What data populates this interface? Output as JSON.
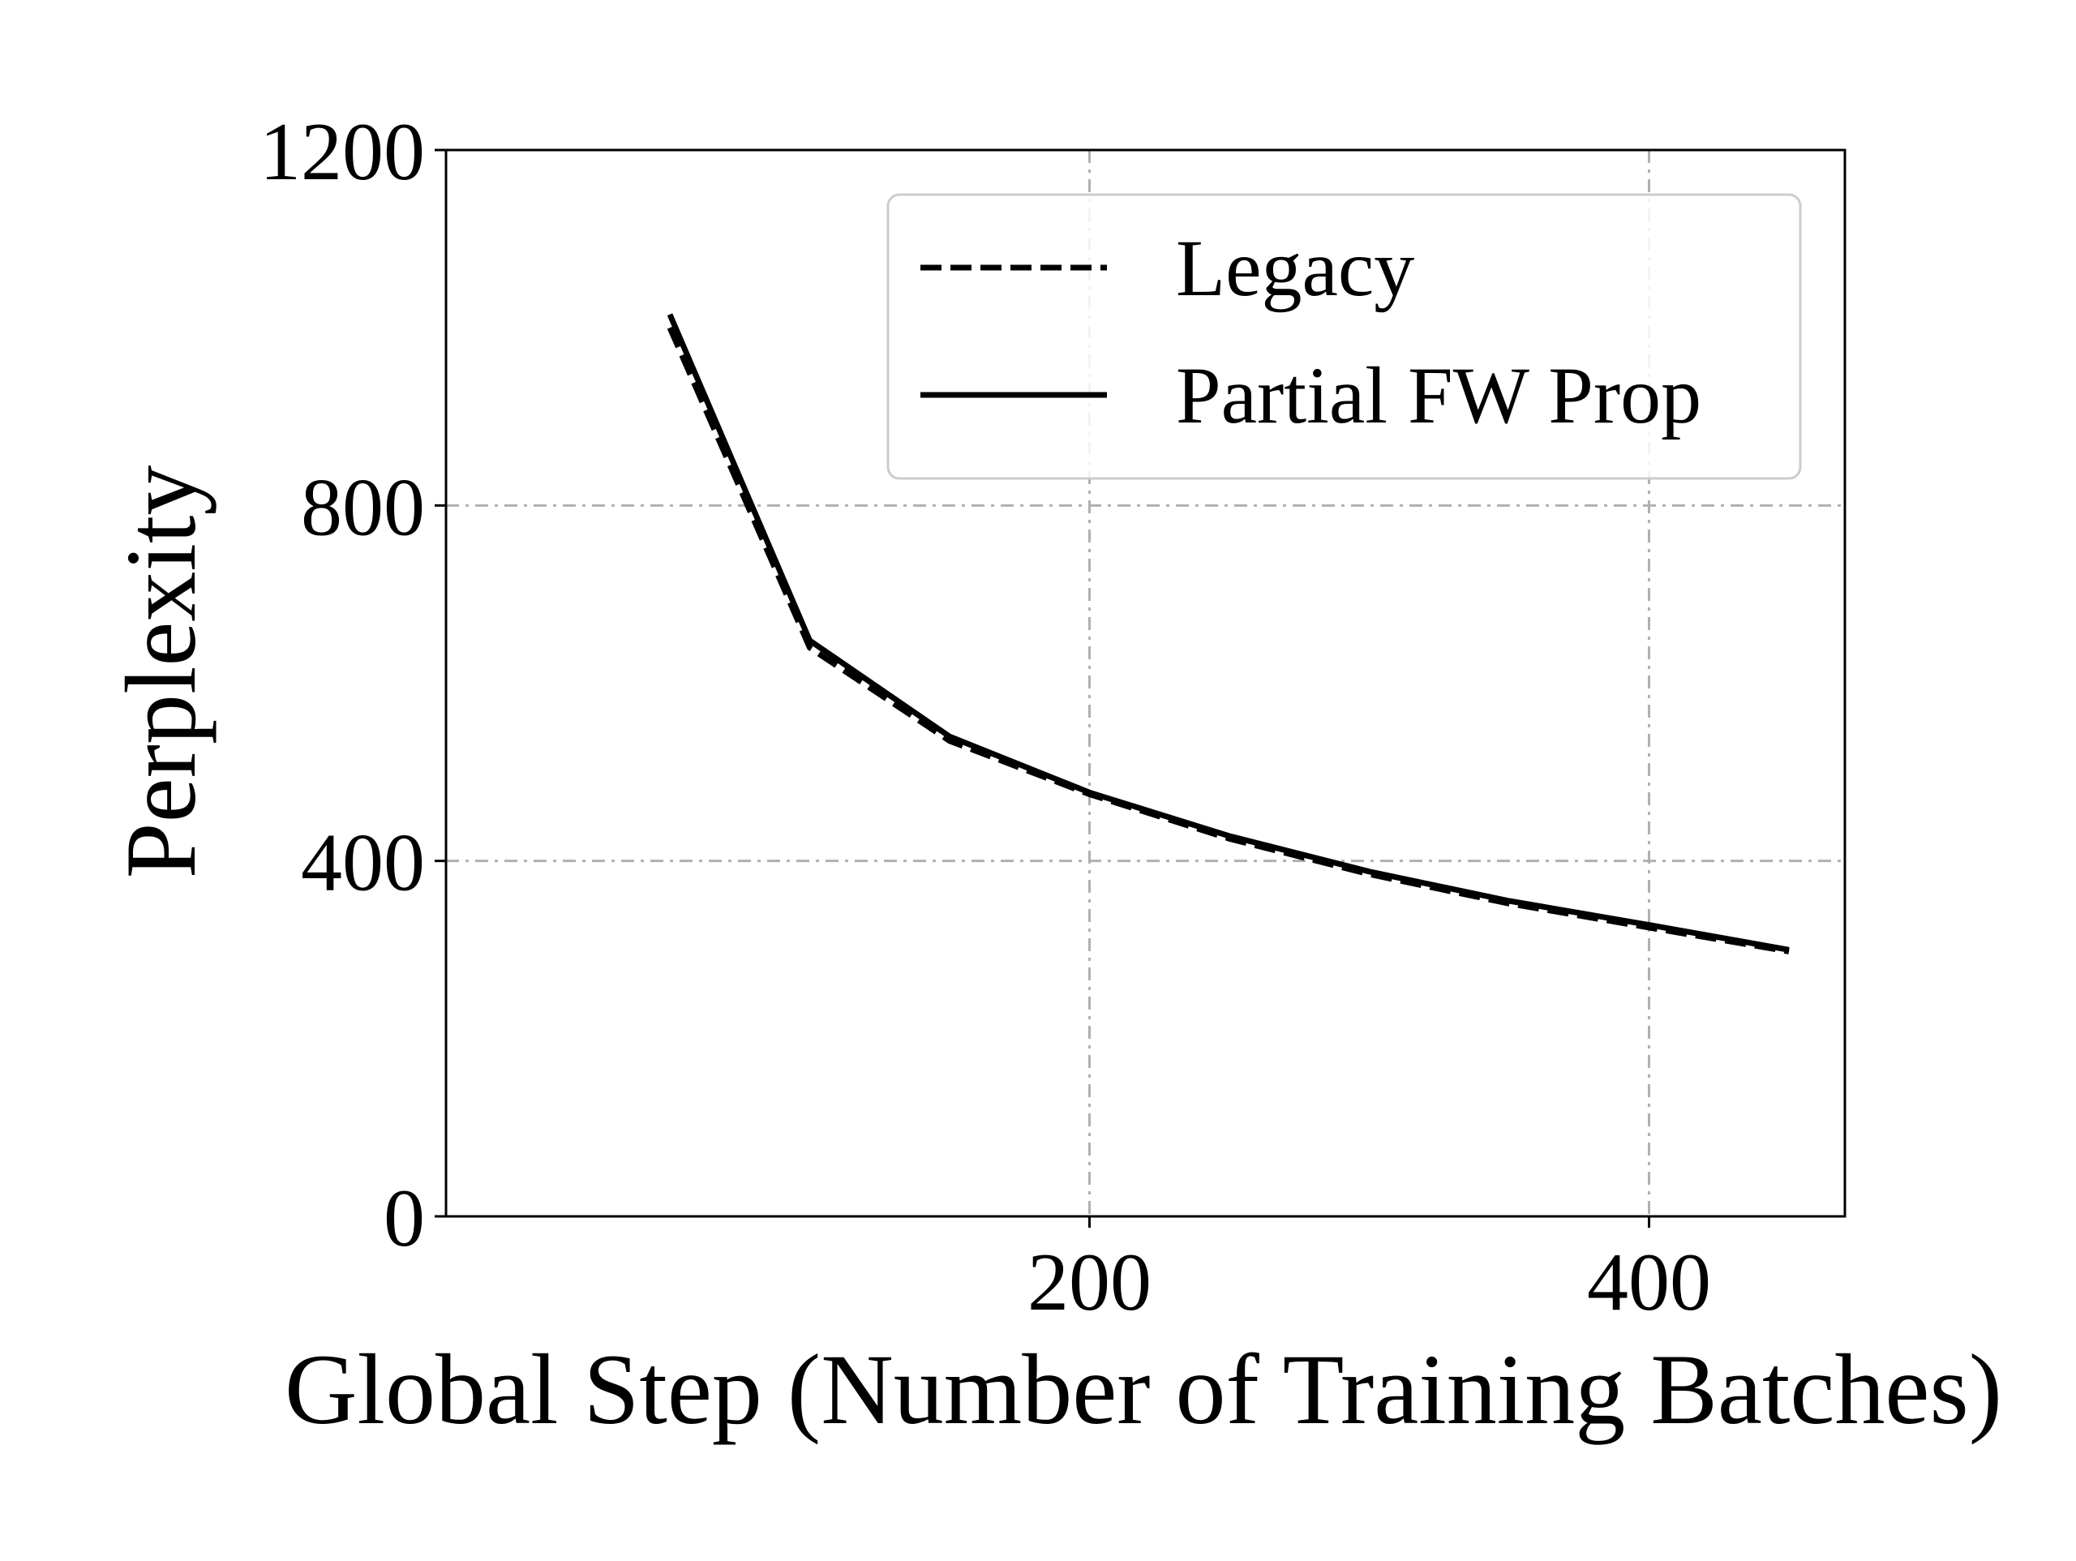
{
  "chart_data": {
    "type": "line",
    "title": "",
    "xlabel": "Global Step (Number of Training Batches)",
    "ylabel": "Perplexity",
    "xlim": [
      -30,
      470
    ],
    "ylim": [
      0,
      1200
    ],
    "xticks": [
      200,
      400
    ],
    "xtick_labels": [
      "200",
      "400"
    ],
    "yticks": [
      0,
      400,
      800,
      1200
    ],
    "ytick_labels": [
      "0",
      "400",
      "800",
      "1200"
    ],
    "grid": true,
    "legend_position": "top-right",
    "series": [
      {
        "name": "Legacy",
        "style": "dashed",
        "color": "#000000",
        "x": [
          50,
          100,
          150,
          200,
          250,
          300,
          350,
          400,
          450
        ],
        "values": [
          1000,
          640,
          535,
          475,
          425,
          385,
          352,
          325,
          298
        ]
      },
      {
        "name": "Partial FW Prop",
        "style": "solid",
        "color": "#000000",
        "x": [
          50,
          100,
          150,
          200,
          250,
          300,
          350,
          400,
          450
        ],
        "values": [
          1015,
          648,
          540,
          477,
          428,
          388,
          355,
          328,
          300
        ]
      }
    ]
  }
}
